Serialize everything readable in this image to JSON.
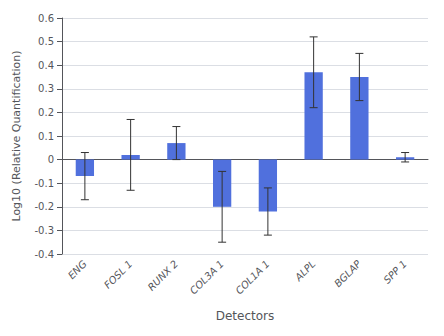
{
  "chart_data": {
    "type": "bar",
    "categories": [
      "ENG",
      "FOSL 1",
      "RUNX 2",
      "COL3A 1",
      "COL1A 1",
      "ALPL",
      "BGLAP",
      "SPP 1"
    ],
    "values": [
      -0.07,
      0.02,
      0.07,
      -0.2,
      -0.22,
      0.37,
      0.35,
      0.01
    ],
    "errors": [
      0.1,
      0.15,
      0.07,
      0.15,
      0.1,
      0.15,
      0.1,
      0.02
    ],
    "xlabel": "Detectors",
    "ylabel": "Log10 (Relative Quantification)",
    "ylim": [
      -0.4,
      0.6
    ],
    "yticks": [
      -0.4,
      -0.3,
      -0.2,
      -0.1,
      0,
      0.1,
      0.2,
      0.3,
      0.4,
      0.5,
      0.6
    ],
    "grid": true
  }
}
